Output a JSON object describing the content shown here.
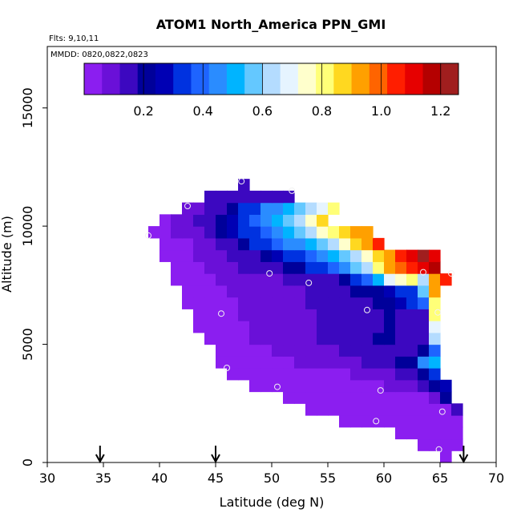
{
  "chart_data": {
    "type": "heatmap",
    "title": "ATOM1 North_America PPN_GMI",
    "annotations": [
      "Flts: 9,10,11",
      "MMDD: 0820,0822,0823"
    ],
    "xlabel": "Latitude (deg N)",
    "ylabel": "Altitude (m)",
    "xlim": [
      30,
      70
    ],
    "ylim": [
      0,
      17600
    ],
    "x_ticks": [
      30,
      35,
      40,
      45,
      50,
      55,
      60,
      65,
      70
    ],
    "x_tick_labels": [
      "30",
      "35",
      "40",
      "45",
      "50",
      "55",
      "60",
      "65",
      "70"
    ],
    "y_ticks": [
      0,
      5000,
      10000,
      15000
    ],
    "y_tick_labels": [
      "0",
      "5000",
      "10000",
      "15000"
    ],
    "colorbar": {
      "range": [
        0,
        1.26
      ],
      "ticks": [
        0.2,
        0.4,
        0.6,
        0.8,
        1.0,
        1.2
      ],
      "tick_labels": [
        "0.2",
        "0.4",
        "0.6",
        "0.8",
        "1.0",
        "1.2"
      ],
      "colors": [
        "#8b1ef0",
        "#6a10d8",
        "#3c08c0",
        "#00009a",
        "#0000b4",
        "#0032e0",
        "#1e64ff",
        "#2a8cff",
        "#00b4ff",
        "#64c8ff",
        "#b4dcff",
        "#e6f4ff",
        "#ffffcc",
        "#ffff78",
        "#ffd820",
        "#ffa000",
        "#ff6400",
        "#ff1e00",
        "#e60000",
        "#b40000",
        "#a01e1e"
      ]
    },
    "grid": {
      "lat_start": 34.0,
      "lat_step": 1.0,
      "alt_start": 500,
      "alt_step": 500,
      "rows": [
        {
          "alt": 500,
          "lat0": 65,
          "vals": [
            0.02
          ]
        },
        {
          "alt": 1000,
          "lat0": 63,
          "vals": [
            0.02,
            0.02,
            0.02,
            0.02
          ]
        },
        {
          "alt": 1500,
          "lat0": 61,
          "vals": [
            0.02,
            0.02,
            0.02,
            0.02,
            0.02,
            0.02
          ]
        },
        {
          "alt": 2000,
          "lat0": 56,
          "vals": [
            0.02,
            0.02,
            0.02,
            0.02,
            0.02,
            0.02,
            0.02,
            0.02,
            0.02,
            0.02,
            0.02
          ]
        },
        {
          "alt": 2500,
          "lat0": 53,
          "vals": [
            0.02,
            0.02,
            0.02,
            0.02,
            0.02,
            0.02,
            0.02,
            0.02,
            0.02,
            0.02,
            0.02,
            0.02,
            0.05,
            0.12
          ]
        },
        {
          "alt": 3000,
          "lat0": 51,
          "vals": [
            0.02,
            0.02,
            0.02,
            0.02,
            0.02,
            0.02,
            0.02,
            0.02,
            0.02,
            0.02,
            0.03,
            0.03,
            0.05,
            0.1,
            0.2
          ]
        },
        {
          "alt": 3500,
          "lat0": 48,
          "vals": [
            0.02,
            0.02,
            0.02,
            0.02,
            0.02,
            0.02,
            0.02,
            0.02,
            0.02,
            0.02,
            0.03,
            0.04,
            0.06,
            0.08,
            0.1,
            0.15,
            0.2,
            0.28
          ]
        },
        {
          "alt": 4000,
          "lat0": 46,
          "vals": [
            0.02,
            0.02,
            0.02,
            0.02,
            0.02,
            0.02,
            0.03,
            0.04,
            0.04,
            0.05,
            0.05,
            0.06,
            0.07,
            0.08,
            0.1,
            0.12,
            0.14,
            0.2,
            0.35
          ]
        },
        {
          "alt": 4500,
          "lat0": 45,
          "vals": [
            0.02,
            0.02,
            0.02,
            0.03,
            0.03,
            0.04,
            0.05,
            0.06,
            0.07,
            0.08,
            0.08,
            0.1,
            0.1,
            0.12,
            0.14,
            0.16,
            0.18,
            0.2,
            0.45,
            0.5
          ]
        },
        {
          "alt": 5000,
          "lat0": 45,
          "vals": [
            0.02,
            0.03,
            0.03,
            0.04,
            0.05,
            0.06,
            0.07,
            0.08,
            0.09,
            0.1,
            0.11,
            0.12,
            0.13,
            0.14,
            0.16,
            0.16,
            0.16,
            0.17,
            0.18,
            0.4
          ]
        },
        {
          "alt": 5500,
          "lat0": 44,
          "vals": [
            0.02,
            0.03,
            0.04,
            0.05,
            0.06,
            0.07,
            0.08,
            0.09,
            0.1,
            0.11,
            0.12,
            0.13,
            0.14,
            0.16,
            0.17,
            0.18,
            0.18,
            0.16,
            0.17,
            0.16,
            0.62
          ]
        },
        {
          "alt": 6000,
          "lat0": 43,
          "vals": [
            0.02,
            0.03,
            0.03,
            0.04,
            0.05,
            0.06,
            0.07,
            0.08,
            0.09,
            0.1,
            0.11,
            0.12,
            0.13,
            0.14,
            0.15,
            0.16,
            0.17,
            0.18,
            0.17,
            0.16,
            0.17,
            0.7
          ]
        },
        {
          "alt": 6500,
          "lat0": 43,
          "vals": [
            0.02,
            0.03,
            0.04,
            0.05,
            0.06,
            0.07,
            0.08,
            0.08,
            0.09,
            0.1,
            0.11,
            0.12,
            0.13,
            0.14,
            0.15,
            0.16,
            0.17,
            0.18,
            0.16,
            0.17,
            0.16,
            0.8
          ]
        },
        {
          "alt": 7000,
          "lat0": 42,
          "vals": [
            0.02,
            0.03,
            0.03,
            0.04,
            0.05,
            0.06,
            0.07,
            0.08,
            0.09,
            0.1,
            0.11,
            0.12,
            0.13,
            0.14,
            0.15,
            0.16,
            0.17,
            0.18,
            0.2,
            0.25,
            0.3,
            0.38,
            0.8
          ]
        },
        {
          "alt": 7500,
          "lat0": 42,
          "vals": [
            0.02,
            0.03,
            0.04,
            0.05,
            0.06,
            0.07,
            0.08,
            0.09,
            0.1,
            0.11,
            0.11,
            0.12,
            0.13,
            0.14,
            0.16,
            0.18,
            0.2,
            0.22,
            0.25,
            0.3,
            0.35,
            0.55,
            0.9
          ]
        },
        {
          "alt": 8000,
          "lat0": 41,
          "vals": [
            0.02,
            0.03,
            0.04,
            0.05,
            0.06,
            0.07,
            0.08,
            0.09,
            0.1,
            0.11,
            0.12,
            0.13,
            0.14,
            0.16,
            0.17,
            0.2,
            0.3,
            0.4,
            0.5,
            0.7,
            0.75,
            0.8,
            0.62,
            0.9,
            1.05
          ]
        },
        {
          "alt": 8500,
          "lat0": 41,
          "vals": [
            0.03,
            0.04,
            0.05,
            0.06,
            0.08,
            0.1,
            0.12,
            0.14,
            0.16,
            0.16,
            0.18,
            0.2,
            0.3,
            0.35,
            0.4,
            0.45,
            0.55,
            0.65,
            0.8,
            0.9,
            1.0,
            1.05,
            1.1,
            1.15
          ]
        },
        {
          "alt": 9000,
          "lat0": 40,
          "vals": [
            0.03,
            0.04,
            0.05,
            0.06,
            0.07,
            0.1,
            0.12,
            0.14,
            0.16,
            0.2,
            0.25,
            0.3,
            0.35,
            0.38,
            0.42,
            0.48,
            0.55,
            0.62,
            0.72,
            0.85,
            0.95,
            1.05,
            1.12,
            1.2,
            1.12
          ]
        },
        {
          "alt": 9500,
          "lat0": 40,
          "vals": [
            0.03,
            0.04,
            0.05,
            0.06,
            0.08,
            0.12,
            0.15,
            0.2,
            0.3,
            0.35,
            0.38,
            0.42,
            0.46,
            0.52,
            0.58,
            0.65,
            0.75,
            0.88,
            0.95,
            1.02
          ]
        },
        {
          "alt": 10000,
          "lat0": 39,
          "vals": [
            0.03,
            0.04,
            0.06,
            0.08,
            0.1,
            0.14,
            0.18,
            0.25,
            0.3,
            0.35,
            0.38,
            0.42,
            0.48,
            0.55,
            0.62,
            0.72,
            0.8,
            0.88,
            0.9,
            0.92
          ]
        },
        {
          "alt": 10500,
          "lat0": 40,
          "vals": [
            0.05,
            0.07,
            0.1,
            0.12,
            0.15,
            0.2,
            0.28,
            0.35,
            0.4,
            0.45,
            0.52,
            0.58,
            0.65,
            0.75,
            0.85
          ]
        },
        {
          "alt": 11000,
          "lat0": 42,
          "vals": [
            0.06,
            0.1,
            0.14,
            0.16,
            0.22,
            0.3,
            0.35,
            0.42,
            0.46,
            0.5,
            0.58,
            0.62,
            0.7,
            0.78
          ]
        },
        {
          "alt": 11500,
          "lat0": 44,
          "vals": [
            0.16,
            0.16,
            0.16,
            0.16,
            0.16,
            0.16,
            0.16,
            0.16
          ]
        },
        {
          "alt": 12000,
          "lat0": 47,
          "vals": [
            0.16
          ]
        }
      ]
    },
    "observations": [
      {
        "lat": 39.0,
        "alt": 9600
      },
      {
        "lat": 42.5,
        "alt": 10850
      },
      {
        "lat": 47.3,
        "alt": 11900
      },
      {
        "lat": 51.8,
        "alt": 11500
      },
      {
        "lat": 49.8,
        "alt": 8000
      },
      {
        "lat": 53.3,
        "alt": 7600
      },
      {
        "lat": 63.5,
        "alt": 8050
      },
      {
        "lat": 66.0,
        "alt": 8000
      },
      {
        "lat": 45.5,
        "alt": 6300
      },
      {
        "lat": 58.5,
        "alt": 6450
      },
      {
        "lat": 64.8,
        "alt": 6350
      },
      {
        "lat": 46.0,
        "alt": 4000
      },
      {
        "lat": 50.5,
        "alt": 3200
      },
      {
        "lat": 59.7,
        "alt": 3050
      },
      {
        "lat": 65.2,
        "alt": 2150
      },
      {
        "lat": 59.3,
        "alt": 1750
      },
      {
        "lat": 64.9,
        "alt": 550
      }
    ],
    "flight_markers_lat": [
      34.7,
      45.0,
      67.1
    ]
  }
}
